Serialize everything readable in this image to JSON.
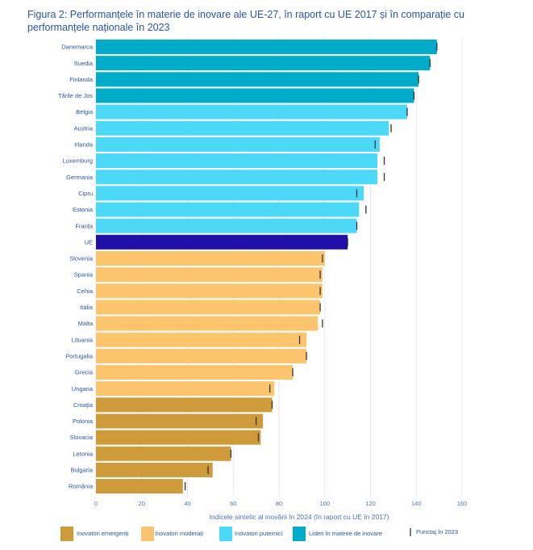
{
  "figure": {
    "title": "Figura 2: Performanțele în materie de inovare ale UE-27, în raport cu UE 2017 și în comparație cu performanțele naționale în 2023"
  },
  "colors": {
    "lider": "#00acc9",
    "puternic": "#4cd9f7",
    "moderat": "#fbc46d",
    "emergent": "#cf9a39",
    "ue": "#2010a8",
    "marker": "#333333",
    "grid": "#dde4f0",
    "text": "#2a54a8"
  },
  "chart_data": {
    "type": "bar",
    "orientation": "horizontal",
    "xlabel": "Indicele sintetic al inovării în 2024 (în raport cu UE în 2017)",
    "xlim": [
      0,
      160
    ],
    "xticks": [
      0,
      20,
      40,
      60,
      80,
      100,
      120,
      140,
      160
    ],
    "grid": true,
    "legend_position": "bottom",
    "legend": [
      {
        "key": "emergent",
        "label": "Inovatori emergenți"
      },
      {
        "key": "moderat",
        "label": "Inovatori moderați"
      },
      {
        "key": "puternic",
        "label": "Inovatori puternici"
      },
      {
        "key": "lider",
        "label": "Lideri în materie de inovare"
      },
      {
        "key": "marker",
        "label": "Punctaj în 2023"
      }
    ],
    "categories": [
      "Danemarca",
      "Suedia",
      "Finlanda",
      "Țările de Jos",
      "Belgia",
      "Austria",
      "Irlanda",
      "Luxemburg",
      "Germania",
      "Cipru",
      "Estonia",
      "Franța",
      "UE",
      "Slovenia",
      "Spania",
      "Cehia",
      "Italia",
      "Malta",
      "Lituania",
      "Portugalia",
      "Grecia",
      "Ungaria",
      "Croația",
      "Polonia",
      "Slovacia",
      "Letonia",
      "Bulgaria",
      "România"
    ],
    "values_2024": [
      149,
      146,
      141,
      139,
      136,
      128,
      124,
      123,
      123,
      117,
      115,
      114,
      110,
      100,
      99,
      99,
      98,
      97,
      92,
      92,
      86,
      78,
      77,
      73,
      72,
      59,
      51,
      38
    ],
    "values_2023": [
      149,
      146,
      141,
      139,
      136,
      129,
      122,
      126,
      126,
      114,
      118,
      114,
      110,
      99,
      98,
      98,
      98,
      99,
      89,
      92,
      86,
      76,
      77,
      70,
      71,
      59,
      49,
      39
    ],
    "groups": [
      "lider",
      "lider",
      "lider",
      "lider",
      "puternic",
      "puternic",
      "puternic",
      "puternic",
      "puternic",
      "puternic",
      "puternic",
      "puternic",
      "ue",
      "moderat",
      "moderat",
      "moderat",
      "moderat",
      "moderat",
      "moderat",
      "moderat",
      "moderat",
      "moderat",
      "emergent",
      "emergent",
      "emergent",
      "emergent",
      "emergent",
      "emergent"
    ]
  }
}
